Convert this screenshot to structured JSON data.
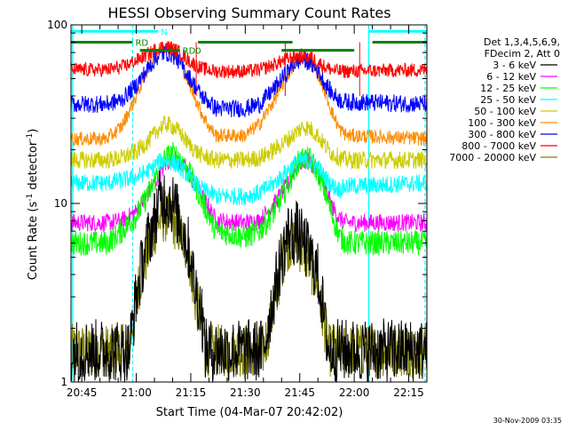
{
  "chart_data": {
    "type": "line",
    "title": "HESSI Observing Summary Count Rates",
    "xlabel": "Start Time (04-Mar-07 20:42:02)",
    "ylabel": "Count Rate (s⁻¹ detector⁻¹)",
    "ylabel_parts": {
      "main": "Count Rate (s",
      "exp1": "-1",
      "mid": " detector",
      "exp2": "-1",
      "end": ")"
    },
    "y_scale": "log",
    "xlim_minutes": [
      42.03,
      140.0
    ],
    "ylim": [
      1,
      100
    ],
    "x_ticks": [
      {
        "label": "20:45",
        "minutes": 45
      },
      {
        "label": "21:00",
        "minutes": 60
      },
      {
        "label": "21:15",
        "minutes": 75
      },
      {
        "label": "21:30",
        "minutes": 90
      },
      {
        "label": "21:45",
        "minutes": 105
      },
      {
        "label": "22:00",
        "minutes": 120
      },
      {
        "label": "22:15",
        "minutes": 135
      }
    ],
    "y_ticks": [
      {
        "label": "1",
        "value": 1
      },
      {
        "label": "10",
        "value": 10
      },
      {
        "label": "100",
        "value": 100
      }
    ],
    "legend_header": [
      "Det 1,3,4,5,6,9,",
      "FDecim 2, Att 0"
    ],
    "series": [
      {
        "name": "3 - 6 keV",
        "color": "#000000",
        "x": [
          42,
          58,
          60,
          62,
          64,
          65,
          66,
          68,
          70,
          72,
          74,
          75,
          76,
          78,
          79,
          80,
          95,
          97,
          99,
          100,
          101,
          102,
          103,
          104,
          106,
          108,
          110,
          111,
          112,
          113,
          116,
          118,
          140
        ],
        "y": [
          1.5,
          1.5,
          3,
          5,
          7,
          8,
          10,
          11,
          10,
          8,
          6,
          5,
          3.5,
          2.5,
          1.5,
          1.5,
          1.5,
          2.5,
          4,
          5,
          6,
          7,
          6.5,
          7,
          6,
          5,
          4,
          3,
          2,
          1.5,
          1.5,
          1.5,
          1.5
        ]
      },
      {
        "name": "6 - 12 keV",
        "color": "#ff00ff",
        "x": [
          42,
          52,
          56,
          60,
          64,
          66,
          68,
          70,
          72,
          74,
          76,
          78,
          80,
          82,
          90,
          94,
          98,
          102,
          104,
          106,
          108,
          110,
          112,
          114,
          116,
          118,
          140
        ],
        "y": [
          7.8,
          7.8,
          8,
          9,
          12,
          14,
          16.5,
          18,
          17,
          15,
          13,
          11,
          9.5,
          8,
          7.8,
          8,
          10,
          13,
          16,
          17.5,
          17,
          15,
          12,
          9.5,
          8.2,
          7.8,
          7.8
        ]
      },
      {
        "name": "12 - 25 keV",
        "color": "#00ff00",
        "x": [
          42,
          52,
          56,
          60,
          64,
          66,
          68,
          70,
          72,
          74,
          76,
          78,
          80,
          82,
          90,
          94,
          98,
          102,
          104,
          106,
          108,
          110,
          112,
          114,
          116,
          118,
          140
        ],
        "y": [
          6,
          6,
          7,
          8.5,
          12,
          15,
          18,
          19,
          18,
          15.5,
          13,
          10.5,
          8.5,
          7,
          6.5,
          7,
          9,
          13,
          16.5,
          18,
          17.5,
          15,
          11.5,
          8.5,
          6.5,
          6,
          6
        ]
      },
      {
        "name": "25 - 50 keV",
        "color": "#00ffff",
        "x": [
          42,
          52,
          56,
          60,
          64,
          66,
          68,
          70,
          72,
          74,
          76,
          78,
          80,
          82,
          90,
          94,
          98,
          102,
          104,
          106,
          108,
          110,
          112,
          114,
          116,
          118,
          140
        ],
        "y": [
          13,
          13,
          13.5,
          14,
          15.5,
          17,
          17.5,
          17,
          16,
          14.5,
          13,
          12,
          11.5,
          11,
          11,
          11.5,
          13,
          15.5,
          17,
          17.5,
          17,
          16,
          14,
          12.5,
          12,
          12.5,
          13
        ]
      },
      {
        "name": "50 - 100 keV",
        "color": "#cccc00",
        "x": [
          42,
          52,
          56,
          60,
          64,
          66,
          68,
          70,
          72,
          74,
          76,
          78,
          80,
          82,
          90,
          94,
          98,
          102,
          104,
          106,
          108,
          110,
          112,
          114,
          116,
          118,
          140
        ],
        "y": [
          17.5,
          17.5,
          18,
          19.5,
          23,
          26,
          28,
          27,
          25,
          22,
          20,
          18.5,
          18,
          17.5,
          17.5,
          18,
          20,
          23,
          25,
          27,
          26,
          24,
          21,
          19,
          18,
          17.5,
          17.5
        ]
      },
      {
        "name": "100 - 300 keV",
        "color": "#ff8c00",
        "x": [
          42,
          52,
          56,
          60,
          64,
          66,
          68,
          70,
          72,
          74,
          76,
          78,
          80,
          82,
          90,
          94,
          98,
          102,
          104,
          106,
          108,
          110,
          112,
          114,
          116,
          118,
          140
        ],
        "y": [
          23,
          23,
          27,
          40,
          62,
          72,
          77,
          73,
          62,
          50,
          40,
          32,
          27,
          24,
          24,
          28,
          38,
          54,
          63,
          66,
          63,
          54,
          42,
          32,
          26,
          24,
          23
        ]
      },
      {
        "name": "300 - 800 keV",
        "color": "#0000ff",
        "x": [
          42,
          52,
          56,
          60,
          64,
          66,
          68,
          70,
          72,
          74,
          76,
          78,
          80,
          82,
          90,
          94,
          98,
          102,
          104,
          106,
          108,
          110,
          112,
          114,
          116,
          118,
          140
        ],
        "y": [
          36,
          36,
          38,
          46,
          60,
          67,
          70,
          68,
          62,
          53,
          46,
          40,
          37,
          34,
          34,
          36,
          44,
          56,
          62,
          64,
          61,
          55,
          47,
          41,
          38,
          37,
          36
        ]
      },
      {
        "name": "800 - 7000 keV",
        "color": "#ff0000",
        "x": [
          42,
          52,
          56,
          60,
          64,
          66,
          68,
          70,
          72,
          74,
          76,
          78,
          80,
          82,
          90,
          94,
          98,
          102,
          104,
          106,
          108,
          110,
          112,
          114,
          116,
          118,
          140
        ],
        "y": [
          56,
          56,
          58,
          63,
          70,
          74,
          76,
          74,
          70,
          64,
          60,
          57,
          56,
          55,
          55,
          56,
          60,
          65,
          67,
          67,
          66,
          62,
          58,
          56,
          55,
          55,
          56
        ]
      },
      {
        "name": "7000 - 20000 keV",
        "color": "#808000",
        "x": [
          42,
          58,
          60,
          62,
          64,
          65,
          66,
          68,
          70,
          72,
          74,
          75,
          76,
          78,
          79,
          80,
          95,
          97,
          99,
          100,
          101,
          102,
          103,
          104,
          106,
          108,
          110,
          111,
          112,
          113,
          116,
          118,
          140
        ],
        "y": [
          1.5,
          1.5,
          3,
          4.5,
          6,
          7,
          8,
          8.5,
          8,
          7,
          5.5,
          4.5,
          3,
          2.2,
          1.6,
          1.5,
          1.5,
          2.2,
          3.5,
          4.5,
          5.5,
          6,
          6,
          6,
          5.5,
          4.5,
          3.5,
          2.5,
          2,
          1.5,
          1.5,
          1.5,
          1.5
        ]
      }
    ],
    "status_bars": [
      {
        "label": "RD",
        "color": "#008000",
        "x0": 42,
        "x1": 59,
        "y": 80
      },
      {
        "label": "RD0",
        "color": "#008000",
        "x0": 61,
        "x1": 72,
        "y": 72
      },
      {
        "label": "",
        "color": "#008000",
        "x0": 77,
        "x1": 103,
        "y": 80
      },
      {
        "label": "",
        "color": "#008000",
        "x0": 100,
        "x1": 120,
        "y": 72
      },
      {
        "label": "",
        "color": "#008000",
        "x0": 125,
        "x1": 140,
        "y": 80
      },
      {
        "label": "N",
        "color": "#00ffff",
        "x0": 42,
        "x1": 66,
        "y": 92
      },
      {
        "label": "",
        "color": "#00ffff",
        "x0": 124,
        "x1": 140,
        "y": 92
      }
    ],
    "night_lines": [
      {
        "minutes": 42.5,
        "style": "solid",
        "color": "#00ffff"
      },
      {
        "minutes": 59,
        "style": "dashed",
        "color": "#00ffff"
      },
      {
        "minutes": 124,
        "style": "solid",
        "color": "#00ffff"
      },
      {
        "minutes": 139.5,
        "style": "dashed",
        "color": "#00ffff"
      }
    ],
    "saa_markers": [
      {
        "minutes": 76.5,
        "color": "#ff0000"
      },
      {
        "minutes": 101,
        "color": "#ff0000"
      },
      {
        "minutes": 121.5,
        "color": "#ff0000"
      }
    ],
    "timestamp": "30-Nov-2009 03:35"
  }
}
